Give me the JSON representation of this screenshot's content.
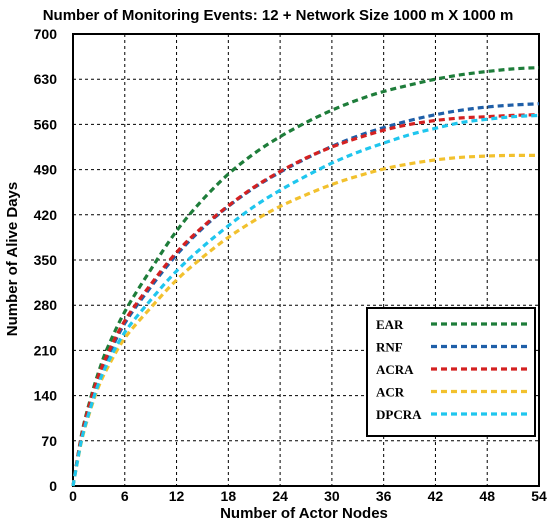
{
  "chart_data": {
    "type": "line",
    "title": "Number of Monitoring Events: 12 + Network Size 1000 m X 1000 m",
    "xlabel": "Number of Actor Nodes",
    "ylabel": "Number of Alive Days",
    "xlim": [
      0,
      54
    ],
    "ylim": [
      0,
      700
    ],
    "xticks": [
      0,
      6,
      12,
      18,
      24,
      30,
      36,
      42,
      48,
      54
    ],
    "yticks": [
      0,
      70,
      140,
      210,
      280,
      350,
      420,
      490,
      560,
      630,
      700
    ],
    "grid": true,
    "legend_position": "bottom-right",
    "x": [
      0,
      1,
      2,
      3,
      4,
      6,
      9,
      12,
      15,
      18,
      21,
      24,
      27,
      30,
      33,
      36,
      39,
      42,
      45,
      48,
      51,
      54
    ],
    "series": [
      {
        "name": "EAR",
        "color": "#1e7d3a",
        "values": [
          0,
          80,
          134,
          178,
          214,
          270,
          335,
          395,
          443,
          483,
          515,
          541,
          563,
          582,
          598,
          611,
          621,
          630,
          637,
          642,
          646,
          648
        ]
      },
      {
        "name": "RNF",
        "color": "#1f5fa8",
        "values": [
          0,
          75,
          125,
          167,
          199,
          252,
          308,
          358,
          399,
          433,
          462,
          486,
          507,
          526,
          542,
          555,
          566,
          575,
          582,
          587,
          590,
          592
        ]
      },
      {
        "name": "ACRA",
        "color": "#d42121",
        "values": [
          0,
          78,
          130,
          172,
          204,
          256,
          312,
          362,
          401,
          434,
          463,
          487,
          508,
          525,
          539,
          551,
          560,
          566,
          570,
          572,
          574,
          575
        ]
      },
      {
        "name": "ACR",
        "color": "#f2c12e",
        "values": [
          0,
          70,
          117,
          155,
          183,
          229,
          276,
          319,
          354,
          385,
          411,
          433,
          451,
          467,
          480,
          491,
          499,
          505,
          509,
          511,
          512,
          512
        ]
      },
      {
        "name": "DPCRA",
        "color": "#1fc6ee",
        "values": [
          0,
          72,
          120,
          160,
          190,
          238,
          288,
          333,
          370,
          403,
          433,
          458,
          480,
          500,
          517,
          531,
          544,
          554,
          563,
          568,
          572,
          574
        ]
      }
    ]
  }
}
